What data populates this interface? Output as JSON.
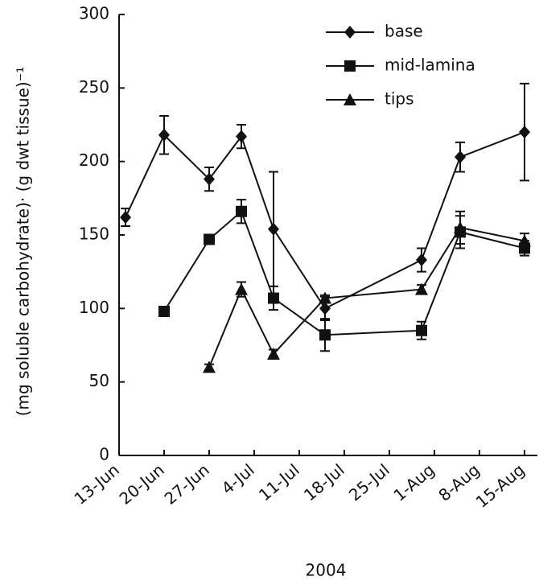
{
  "chart_data": {
    "type": "line",
    "y_label": "(mg soluble carbohydrate)· (g dwt tissue)⁻¹",
    "x_label": "2004",
    "x": [
      "2004-06-14",
      "2004-06-20",
      "2004-06-27",
      "2004-07-02",
      "2004-07-07",
      "2004-07-15",
      "2004-07-30",
      "2004-08-05",
      "2004-08-15"
    ],
    "xlim": [
      "2004-06-13",
      "2004-08-17"
    ],
    "xticks": [
      {
        "value": "2004-06-13",
        "label": "13-Jun"
      },
      {
        "value": "2004-06-20",
        "label": "20-Jun"
      },
      {
        "value": "2004-06-27",
        "label": "27-Jun"
      },
      {
        "value": "2004-07-04",
        "label": "4-Jul"
      },
      {
        "value": "2004-07-11",
        "label": "11-Jul"
      },
      {
        "value": "2004-07-18",
        "label": "18-Jul"
      },
      {
        "value": "2004-07-25",
        "label": "25-Jul"
      },
      {
        "value": "2004-08-01",
        "label": "1-Aug"
      },
      {
        "value": "2004-08-08",
        "label": "8-Aug"
      },
      {
        "value": "2004-08-15",
        "label": "15-Aug"
      }
    ],
    "ylim": [
      0,
      300
    ],
    "yticks": [
      0,
      50,
      100,
      150,
      200,
      250,
      300
    ],
    "legend": "top-right",
    "series": [
      {
        "name": "base",
        "marker": "diamond",
        "color": "#111111",
        "values": [
          162,
          218,
          188,
          217,
          154,
          100,
          133,
          203,
          220
        ],
        "errors": [
          6,
          13,
          8,
          8,
          39,
          8,
          8,
          10,
          33
        ]
      },
      {
        "name": "mid-lamina",
        "marker": "square",
        "color": "#111111",
        "values": [
          null,
          98,
          147,
          166,
          107,
          82,
          85,
          152,
          141
        ],
        "errors": [
          null,
          2,
          3,
          8,
          8,
          11,
          6,
          11,
          5
        ]
      },
      {
        "name": "tips",
        "marker": "triangle",
        "color": "#111111",
        "values": [
          null,
          null,
          60,
          113,
          69,
          107,
          113,
          155,
          146
        ],
        "errors": [
          null,
          null,
          2,
          5,
          3,
          2,
          3,
          11,
          5
        ]
      }
    ]
  }
}
